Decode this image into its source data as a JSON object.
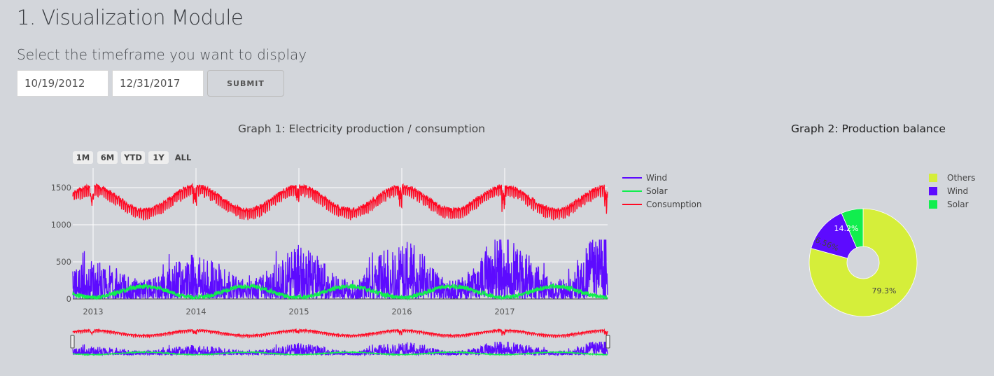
{
  "page": {
    "title": "1. Visualization Module",
    "subtitle": "Select the timeframe you want to display"
  },
  "form": {
    "start_date": "10/19/2012",
    "end_date": "12/31/2017",
    "submit_label": "SUBMIT"
  },
  "graph1": {
    "title": "Graph 1: Electricity production / consumption",
    "range_buttons": [
      "1M",
      "6M",
      "YTD",
      "1Y",
      "ALL"
    ],
    "colors": {
      "Wind": "#5d0bff",
      "Solar": "#11ee4e",
      "Consumption": "#ff0a24"
    }
  },
  "graph2": {
    "title": "Graph 2: Production balance"
  },
  "chart_data": [
    {
      "type": "line",
      "title": "Graph 1: Electricity production / consumption",
      "x_ticks": [
        "2013",
        "2014",
        "2015",
        "2016",
        "2017"
      ],
      "y_ticks": [
        "0",
        "500",
        "1000",
        "1500"
      ],
      "xlim": [
        "2012-10-19",
        "2017-12-31"
      ],
      "ylim": [
        0,
        1700
      ],
      "legend_position": "right",
      "grid": true,
      "series": [
        {
          "name": "Wind",
          "color": "#5d0bff",
          "description_range": [
            0,
            800
          ]
        },
        {
          "name": "Solar",
          "color": "#11ee4e",
          "description_range": [
            0,
            220
          ]
        },
        {
          "name": "Consumption",
          "color": "#ff0a24",
          "description_range": [
            900,
            1650
          ]
        }
      ],
      "range_slider": true
    },
    {
      "type": "pie",
      "title": "Graph 2: Production balance",
      "hole": true,
      "legend_position": "top-right",
      "slices": [
        {
          "label": "Others",
          "value": 79.3,
          "text": "79.3%",
          "color": "#d5ee3a"
        },
        {
          "label": "Wind",
          "value": 14.2,
          "text": "14.2%",
          "color": "#5d0bff"
        },
        {
          "label": "Solar",
          "value": 6.56,
          "text": "6.56%",
          "color": "#11ee4e"
        }
      ]
    }
  ]
}
